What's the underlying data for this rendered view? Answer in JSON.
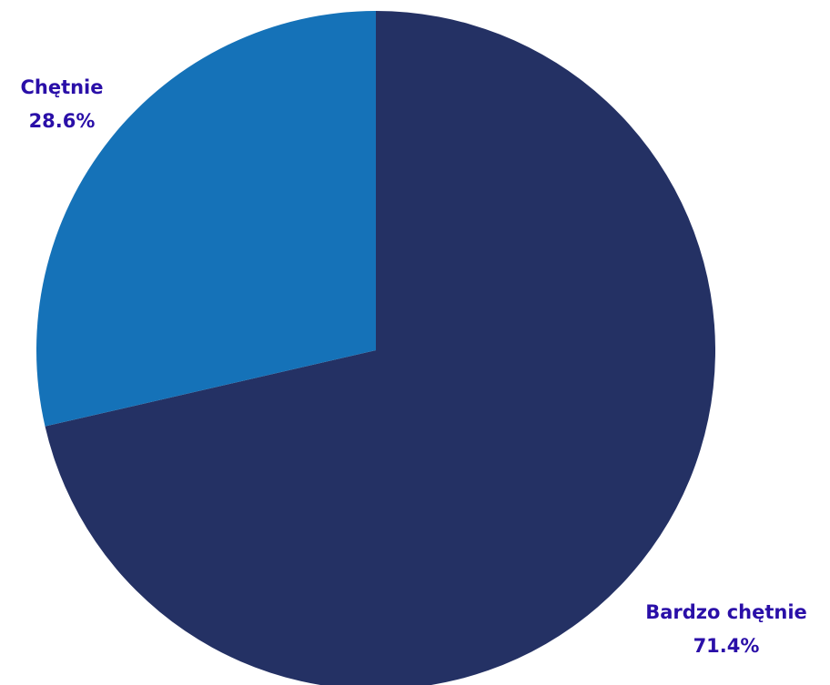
{
  "chart_data": {
    "type": "pie",
    "title": "",
    "start_angle_deg": 0,
    "direction": "clockwise",
    "slices": [
      {
        "label": "Bardzo chętnie",
        "value": 71.4,
        "value_label": "71.4%",
        "color": "#243164"
      },
      {
        "label": "Chętnie",
        "value": 28.6,
        "value_label": "28.6%",
        "color": "#1572b8"
      }
    ],
    "label_color": "#2a0fa8"
  }
}
